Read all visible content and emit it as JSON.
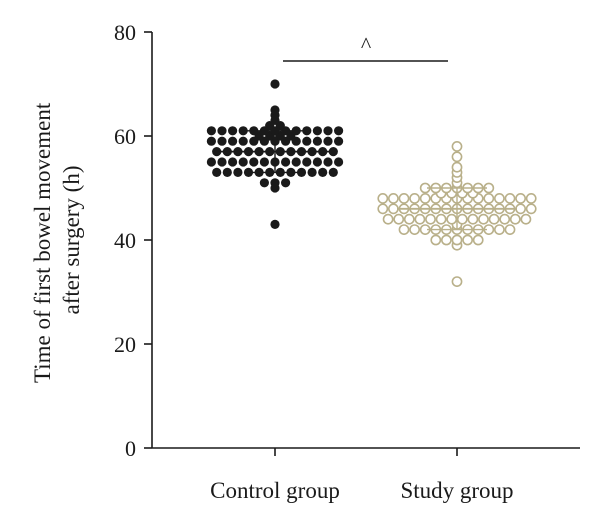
{
  "chart_data": {
    "type": "scatter",
    "subtype": "dot-plot",
    "categories": [
      "Control group",
      "Study group"
    ],
    "ylabel_lines": [
      "Time of first bowel movement",
      "after surgery (h)"
    ],
    "ylim": [
      0,
      80
    ],
    "yticks": [
      "0",
      "20",
      "40",
      "60",
      "80"
    ],
    "significance_marker": "^",
    "colors": {
      "control": "#1a1a1a",
      "study": "#b9b08a",
      "axis": "#1a1a1a"
    },
    "series": [
      {
        "group": "Control group",
        "filled": true,
        "mean": 57,
        "sd": 4,
        "values": [
          70,
          65,
          64,
          63,
          62,
          62,
          61,
          61,
          61,
          61,
          61,
          61,
          61,
          61,
          61,
          61,
          61,
          61,
          61,
          60,
          60,
          60,
          60,
          59,
          59,
          59,
          59,
          59,
          59,
          59,
          59,
          59,
          59,
          59,
          59,
          59,
          57,
          57,
          57,
          57,
          57,
          57,
          57,
          57,
          57,
          57,
          57,
          57,
          55,
          55,
          55,
          55,
          55,
          55,
          55,
          55,
          55,
          55,
          55,
          55,
          55,
          53,
          53,
          53,
          53,
          53,
          53,
          53,
          53,
          53,
          53,
          53,
          53,
          51,
          51,
          51,
          50,
          43
        ]
      },
      {
        "group": "Study group",
        "filled": false,
        "mean": 46,
        "sd": 4,
        "values": [
          58,
          56,
          54,
          53,
          52,
          51,
          50,
          50,
          50,
          50,
          50,
          50,
          50,
          49,
          49,
          49,
          49,
          48,
          48,
          48,
          48,
          48,
          48,
          48,
          48,
          48,
          48,
          48,
          48,
          48,
          48,
          48,
          46,
          46,
          46,
          46,
          46,
          46,
          46,
          46,
          46,
          46,
          46,
          46,
          46,
          46,
          46,
          44,
          44,
          44,
          44,
          44,
          44,
          44,
          44,
          44,
          44,
          44,
          44,
          44,
          44,
          43,
          42,
          42,
          42,
          42,
          42,
          42,
          42,
          42,
          42,
          42,
          42,
          40,
          40,
          40,
          40,
          40,
          39,
          32
        ]
      }
    ]
  }
}
